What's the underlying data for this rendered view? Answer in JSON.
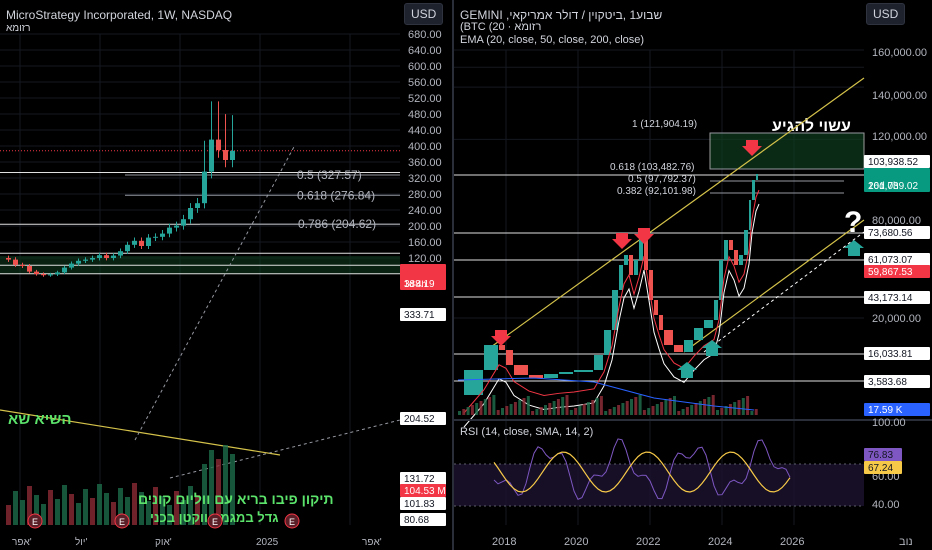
{
  "left": {
    "title": "MicroStrategy Incorporated, 1W, NASDAQ",
    "subtitle": "רזומא",
    "currency": "USD",
    "y_ticks": [
      "680.00",
      "640.00",
      "600.00",
      "560.00",
      "520.00",
      "480.00",
      "440.00",
      "400.00",
      "360.00",
      "320.00",
      "280.00",
      "240.00",
      "200.00",
      "160.00",
      "120.00"
    ],
    "x_ticks": [
      "אפר'",
      "יול'",
      "אוק'",
      "2025",
      "אפר'"
    ],
    "price_badges": [
      {
        "label": "388.19",
        "sub": "1d 4h",
        "color": "#f23645"
      },
      {
        "label": "333.71",
        "color": "#ffffff"
      },
      {
        "label": "204.52",
        "color": "#ffffff"
      },
      {
        "label": "131.72",
        "color": "#ffffff"
      },
      {
        "label": "104.53 M",
        "color": "#f23645"
      },
      {
        "label": "101.83",
        "color": "#ffffff"
      },
      {
        "label": "80.68",
        "color": "#ffffff"
      }
    ],
    "fib_labels": [
      "0.5 (327.57)",
      "0.618 (276.84)",
      "0.786 (204.62)"
    ],
    "annotations": [
      "השיא שא",
      "תיקון פיבו בריא עם ווליום קונים",
      "גדל במגמה ווקטן בכני"
    ],
    "event_markers": [
      "E",
      "E",
      "E",
      "E"
    ]
  },
  "right": {
    "title": "GEMINI ,שבוע1 ,ביטקוין / דולר אמריקאי",
    "subtitle": "(BTC (20 · רזומא",
    "indicator": "EMA (20, close, 50, close, 200, close)",
    "currency": "USD",
    "y_ticks": [
      "160,000.00",
      "140,000.00",
      "120,000.00",
      "80,000.00",
      "20,000.00"
    ],
    "x_ticks": [
      "2018",
      "2020",
      "2022",
      "2024",
      "2026",
      "נוב"
    ],
    "price_badges": [
      {
        "label": "103,938.52",
        "color": "#ffffff"
      },
      {
        "label": "101,039.02",
        "sub": "26d 7h",
        "color": "#089981"
      },
      {
        "label": "73,680.56",
        "color": "#ffffff"
      },
      {
        "label": "61,073.07",
        "color": "#ffffff"
      },
      {
        "label": "59,867.53",
        "color": "#f23645"
      },
      {
        "label": "43,173.14",
        "color": "#ffffff"
      },
      {
        "label": "16,033.81",
        "color": "#ffffff"
      },
      {
        "label": "3,583.68",
        "color": "#ffffff"
      },
      {
        "label": "17.59 K",
        "color": "#2962ff"
      }
    ],
    "fib_labels": [
      "1 (121,904.19)",
      "0.618 (103,482.76)",
      "0.5 (97,792.37)",
      "0.382 (92,101.98)"
    ],
    "annotation": "עשוי להגיע",
    "question_mark": "?",
    "rsi": {
      "label": "RSI (14, close, SMA, 14, 2)",
      "y_ticks": [
        "100.00",
        "60.00",
        "40.00"
      ],
      "badges": [
        {
          "label": "76.83",
          "color": "#7e57c2"
        },
        {
          "label": "67.24",
          "color": "#f7c948"
        }
      ]
    }
  },
  "chart_data": [
    {
      "type": "candlestick",
      "title": "MicroStrategy Incorporated, 1W, NASDAQ",
      "ylim": [
        60,
        700
      ],
      "x_ticks": [
        "אפר'",
        "יול'",
        "אוק'",
        "2025",
        "אפר'"
      ],
      "closes": [
        116,
        103,
        100,
        86,
        80,
        77,
        79,
        84,
        96,
        106,
        113,
        116,
        120,
        127,
        120,
        126,
        137,
        153,
        163,
        150,
        171,
        173,
        181,
        196,
        201,
        217,
        245,
        257,
        336,
        416,
        390,
        365,
        388
      ],
      "fib_levels": [
        {
          "label": "0.5",
          "value": 327.57
        },
        {
          "label": "0.618",
          "value": 276.84
        },
        {
          "label": "0.786",
          "value": 204.62
        }
      ],
      "horizontal_levels": [
        333.71,
        204.52,
        131.72,
        101.83,
        80.68
      ],
      "last_price": 388.19,
      "volume_last": "104.53 M"
    },
    {
      "type": "candlestick",
      "title": "GEMINI ,שבוע1 ,ביטקוין / דולר אמריקאי",
      "scale": "log",
      "x_ticks": [
        "2018",
        "2020",
        "2022",
        "2024",
        "2026"
      ],
      "levels": [
        103938.52,
        73680.56,
        61073.07,
        43173.14,
        16033.81,
        3583.68
      ],
      "fib_levels": [
        {
          "label": "1",
          "value": 121904.19
        },
        {
          "label": "0.618",
          "value": 103482.76
        },
        {
          "label": "0.5",
          "value": 97792.37
        },
        {
          "label": "0.382",
          "value": 92101.98
        }
      ],
      "last_price": 101039.02,
      "ema": "EMA (20, close, 50, close, 200, close)",
      "ema_last": 59867.53,
      "volume_last": "17.59 K",
      "rsi": {
        "label": "RSI (14, close, SMA, 14, 2)",
        "last": 76.83,
        "sma_last": 67.24
      }
    }
  ]
}
